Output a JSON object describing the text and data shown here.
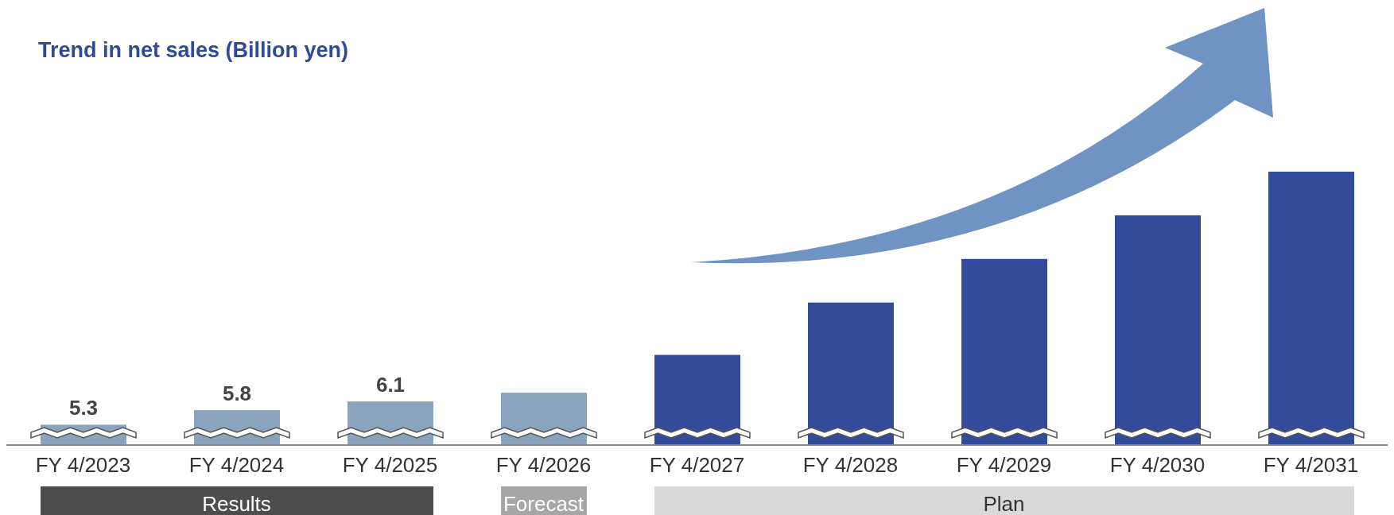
{
  "chart_data": {
    "type": "bar",
    "title": "Trend in net sales (Billion yen)",
    "ylim": [
      4.6,
      14
    ],
    "categories": [
      "FY 4/2023",
      "FY 4/2024",
      "FY 4/2025",
      "FY 4/2026",
      "FY 4/2027",
      "FY 4/2028",
      "FY 4/2029",
      "FY 4/2030",
      "FY 4/2031"
    ],
    "values": [
      5.3,
      5.8,
      6.1,
      6.4,
      7.7,
      9.5,
      11,
      12.5,
      14
    ],
    "colors": [
      "#8aa4be",
      "#8aa4be",
      "#8aa4be",
      "#8aa4be",
      "#324b9a",
      "#324b9a",
      "#324b9a",
      "#324b9a",
      "#324b9a"
    ],
    "value_labels": [
      "5.3",
      "5.8",
      "6.1",
      null,
      null,
      null,
      null,
      null,
      null
    ],
    "annotations": [
      "Results",
      "Forecast",
      "Plan"
    ],
    "grid": false,
    "legend": false
  }
}
